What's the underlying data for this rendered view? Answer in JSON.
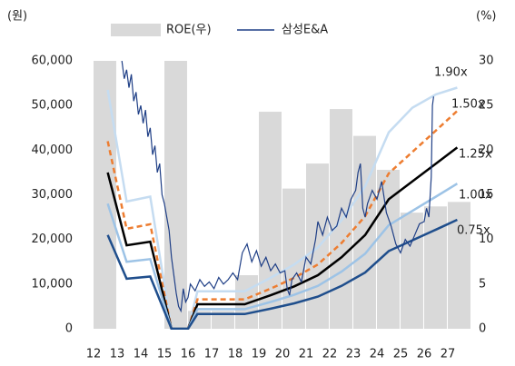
{
  "chart_data": {
    "type": "line",
    "y_unit": "(원)",
    "y2_unit": "(%)",
    "xlim": [
      12,
      28
    ],
    "xticks": [
      12,
      13,
      14,
      15,
      16,
      17,
      18,
      19,
      20,
      21,
      22,
      23,
      24,
      25,
      26,
      27
    ],
    "ylim": [
      0,
      60000
    ],
    "yticks": [
      0,
      {
        "value": 10000,
        "label": "10,000"
      },
      {
        "value": 20000,
        "label": "20,000"
      },
      {
        "value": 30000,
        "label": "30,000"
      },
      {
        "value": 40000,
        "label": "40,000"
      },
      {
        "value": 50000,
        "label": "50,000"
      },
      {
        "value": 60000,
        "label": "60,000"
      }
    ],
    "y2lim": [
      0,
      30
    ],
    "y2ticks": [
      0,
      5,
      10,
      15,
      20,
      25,
      30
    ],
    "bars": {
      "name": "ROE(우)",
      "color": "#d9d9d9",
      "axis": "y2",
      "x": [
        12,
        13,
        14,
        15,
        16,
        17,
        18,
        19,
        20,
        21,
        22,
        23,
        24,
        25,
        26,
        27
      ],
      "values": [
        30,
        null,
        null,
        30,
        2,
        2,
        6,
        24.3,
        15.7,
        18.5,
        24.6,
        21.6,
        17.8,
        13,
        13.7,
        14.2
      ]
    },
    "series": [
      {
        "name": "삼성E&A",
        "color": "#1f3f86",
        "x": [
          13.2,
          13.3,
          13.4,
          13.5,
          13.6,
          13.7,
          13.8,
          13.9,
          14.0,
          14.1,
          14.2,
          14.3,
          14.4,
          14.5,
          14.6,
          14.7,
          14.8,
          14.9,
          15.0,
          15.1,
          15.2,
          15.3,
          15.4,
          15.5,
          15.6,
          15.7,
          15.8,
          15.9,
          16.0,
          16.1,
          16.3,
          16.5,
          16.7,
          16.9,
          17.1,
          17.3,
          17.5,
          17.7,
          17.9,
          18.1,
          18.3,
          18.5,
          18.7,
          18.9,
          19.1,
          19.3,
          19.5,
          19.7,
          19.9,
          20.1,
          20.2,
          20.3,
          20.4,
          20.6,
          20.8,
          21.0,
          21.2,
          21.4,
          21.5,
          21.7,
          21.9,
          22.1,
          22.3,
          22.5,
          22.7,
          22.9,
          23.1,
          23.2,
          23.3,
          23.4,
          23.5,
          23.6,
          23.8,
          24.0,
          24.2,
          24.4,
          24.6,
          24.8,
          25.0,
          25.2,
          25.4,
          25.6,
          25.8,
          26.0,
          26.1,
          26.2,
          26.3,
          26.35,
          26.4
        ],
        "values": [
          60000,
          56000,
          58000,
          54000,
          57000,
          51000,
          53000,
          48000,
          50000,
          46000,
          49000,
          43000,
          45000,
          39000,
          41000,
          35000,
          37000,
          30000,
          28000,
          25000,
          22000,
          16000,
          12000,
          8000,
          5000,
          4000,
          9000,
          6000,
          7000,
          10000,
          8500,
          11000,
          9500,
          10500,
          9000,
          11500,
          10000,
          11000,
          12500,
          11000,
          17000,
          19000,
          15000,
          17500,
          14000,
          16000,
          13000,
          14500,
          12500,
          13000,
          9000,
          7500,
          11000,
          12500,
          10500,
          16000,
          14500,
          20000,
          24000,
          21000,
          25000,
          22000,
          23000,
          27000,
          25000,
          29000,
          31000,
          35000,
          37000,
          27000,
          25000,
          28000,
          31000,
          29000,
          33000,
          26000,
          23000,
          19000,
          17000,
          20000,
          18500,
          21000,
          23500,
          24000,
          27000,
          25000,
          34000,
          50000,
          52000
        ]
      }
    ],
    "bands": [
      {
        "label": "1.90x",
        "color": "#c5dcf1",
        "dash": false,
        "x": [
          12.6,
          13.4,
          14.4,
          15.3,
          16.0,
          16.4,
          18.4,
          19.5,
          20.5,
          21.5,
          22.5,
          23.5,
          24.5,
          25.5,
          26.5,
          27.4
        ],
        "values": [
          53500,
          28500,
          29600,
          0,
          0,
          8400,
          8400,
          11400,
          14400,
          18200,
          24300,
          31900,
          44000,
          49500,
          52500,
          54000
        ]
      },
      {
        "label": "1.50x",
        "color": "#ed7d31",
        "dash": true,
        "x": [
          12.6,
          13.4,
          14.4,
          15.3,
          16.0,
          16.4,
          18.4,
          19.5,
          20.5,
          21.5,
          22.5,
          23.5,
          24.5,
          25.5,
          26.5,
          27.4
        ],
        "values": [
          42000,
          22400,
          23400,
          0,
          0,
          6600,
          6600,
          9000,
          11400,
          14400,
          19200,
          25200,
          34800,
          39600,
          44400,
          48800
        ]
      },
      {
        "label": "1.25x",
        "color": "#000000",
        "dash": false,
        "x": [
          12.6,
          13.4,
          14.4,
          15.3,
          16.0,
          16.4,
          18.4,
          19.5,
          20.5,
          21.5,
          22.5,
          23.5,
          24.5,
          25.5,
          26.5,
          27.4
        ],
        "values": [
          35000,
          18700,
          19500,
          0,
          0,
          5500,
          5500,
          7500,
          9500,
          12000,
          16000,
          21000,
          29000,
          33000,
          37000,
          40600
        ]
      },
      {
        "label": "1.00x",
        "color": "#9dc3e6",
        "dash": false,
        "x": [
          12.6,
          13.4,
          14.4,
          15.3,
          16.0,
          16.4,
          18.4,
          19.5,
          20.5,
          21.5,
          22.5,
          23.5,
          24.5,
          25.5,
          26.5,
          27.4
        ],
        "values": [
          28000,
          15000,
          15600,
          0,
          0,
          4400,
          4400,
          6000,
          7600,
          9600,
          12800,
          16800,
          23200,
          26400,
          29600,
          32500
        ]
      },
      {
        "label": "0.75x",
        "color": "#1f4e8c",
        "dash": false,
        "x": [
          12.6,
          13.4,
          14.4,
          15.3,
          16.0,
          16.4,
          18.4,
          19.5,
          20.5,
          21.5,
          22.5,
          23.5,
          24.5,
          25.5,
          26.5,
          27.4
        ],
        "values": [
          21000,
          11200,
          11700,
          0,
          0,
          3300,
          3300,
          4500,
          5700,
          7200,
          9600,
          12600,
          17400,
          19800,
          22200,
          24400
        ]
      }
    ]
  }
}
